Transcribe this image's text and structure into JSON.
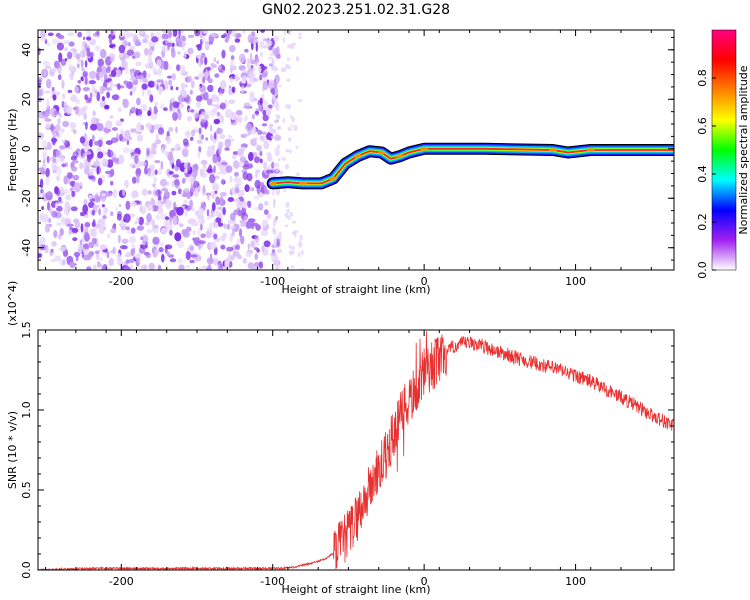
{
  "title": "GN02.2023.251.02.31.G28",
  "chart_data": [
    {
      "type": "heatmap",
      "title": "GN02.2023.251.02.31.G28",
      "xlabel": "Height of straight line (km)",
      "ylabel": "Frequency (Hz)",
      "xlim": [
        -255,
        165
      ],
      "ylim": [
        -49,
        48
      ],
      "xticks": [
        -200,
        -100,
        0,
        100
      ],
      "yticks": [
        -40,
        -20,
        0,
        20,
        40
      ],
      "ridge": [
        {
          "x": -100,
          "y": -14
        },
        {
          "x": -90,
          "y": -13.5
        },
        {
          "x": -80,
          "y": -14
        },
        {
          "x": -68,
          "y": -14
        },
        {
          "x": -60,
          "y": -12
        },
        {
          "x": -52,
          "y": -6
        },
        {
          "x": -44,
          "y": -3
        },
        {
          "x": -36,
          "y": -1
        },
        {
          "x": -28,
          "y": -1.5
        },
        {
          "x": -22,
          "y": -4
        },
        {
          "x": -16,
          "y": -3
        },
        {
          "x": -10,
          "y": -1.5
        },
        {
          "x": 0,
          "y": 0
        },
        {
          "x": 40,
          "y": 0
        },
        {
          "x": 85,
          "y": -0.5
        },
        {
          "x": 95,
          "y": -1.5
        },
        {
          "x": 110,
          "y": -0.5
        },
        {
          "x": 165,
          "y": -0.5
        }
      ],
      "noise_region": {
        "x_from": -255,
        "x_to": -100
      },
      "colorbar": {
        "label": "Normalized spectral amplitude",
        "ticks": [
          "0.0",
          "0.2",
          "0.4",
          "0.6",
          "0.8"
        ],
        "range": [
          0,
          1
        ],
        "colors": [
          "#ffffff",
          "#a020f0",
          "#0000ff",
          "#00ffff",
          "#00ff00",
          "#ffff00",
          "#ff8000",
          "#ff0000",
          "#ff0080"
        ]
      }
    },
    {
      "type": "line",
      "xlabel": "Height of straight line (km)",
      "ylabel": "SNR (10 * v/v)",
      "y_multiplier": "(x10^4)",
      "xlim": [
        -255,
        165
      ],
      "ylim": [
        0,
        1.5
      ],
      "xticks": [
        -200,
        -100,
        0,
        100
      ],
      "yticks": [
        "0.0",
        "0.5",
        "1.0",
        "1.5"
      ],
      "series": [
        {
          "color": "#e83030",
          "x": [
            -255,
            -220,
            -180,
            -140,
            -110,
            -95,
            -85,
            -75,
            -65,
            -58,
            -52,
            -46,
            -40,
            -34,
            -28,
            -22,
            -16,
            -10,
            -6,
            -2,
            2,
            8,
            14,
            20,
            28,
            36,
            50,
            70,
            90,
            110,
            130,
            150,
            165
          ],
          "y": [
            0.0,
            0.01,
            0.01,
            0.01,
            0.01,
            0.01,
            0.02,
            0.04,
            0.07,
            0.12,
            0.2,
            0.3,
            0.42,
            0.55,
            0.66,
            0.8,
            0.95,
            1.05,
            1.12,
            1.2,
            1.25,
            1.3,
            1.35,
            1.4,
            1.42,
            1.41,
            1.36,
            1.3,
            1.25,
            1.18,
            1.08,
            0.97,
            0.9
          ]
        }
      ]
    }
  ]
}
